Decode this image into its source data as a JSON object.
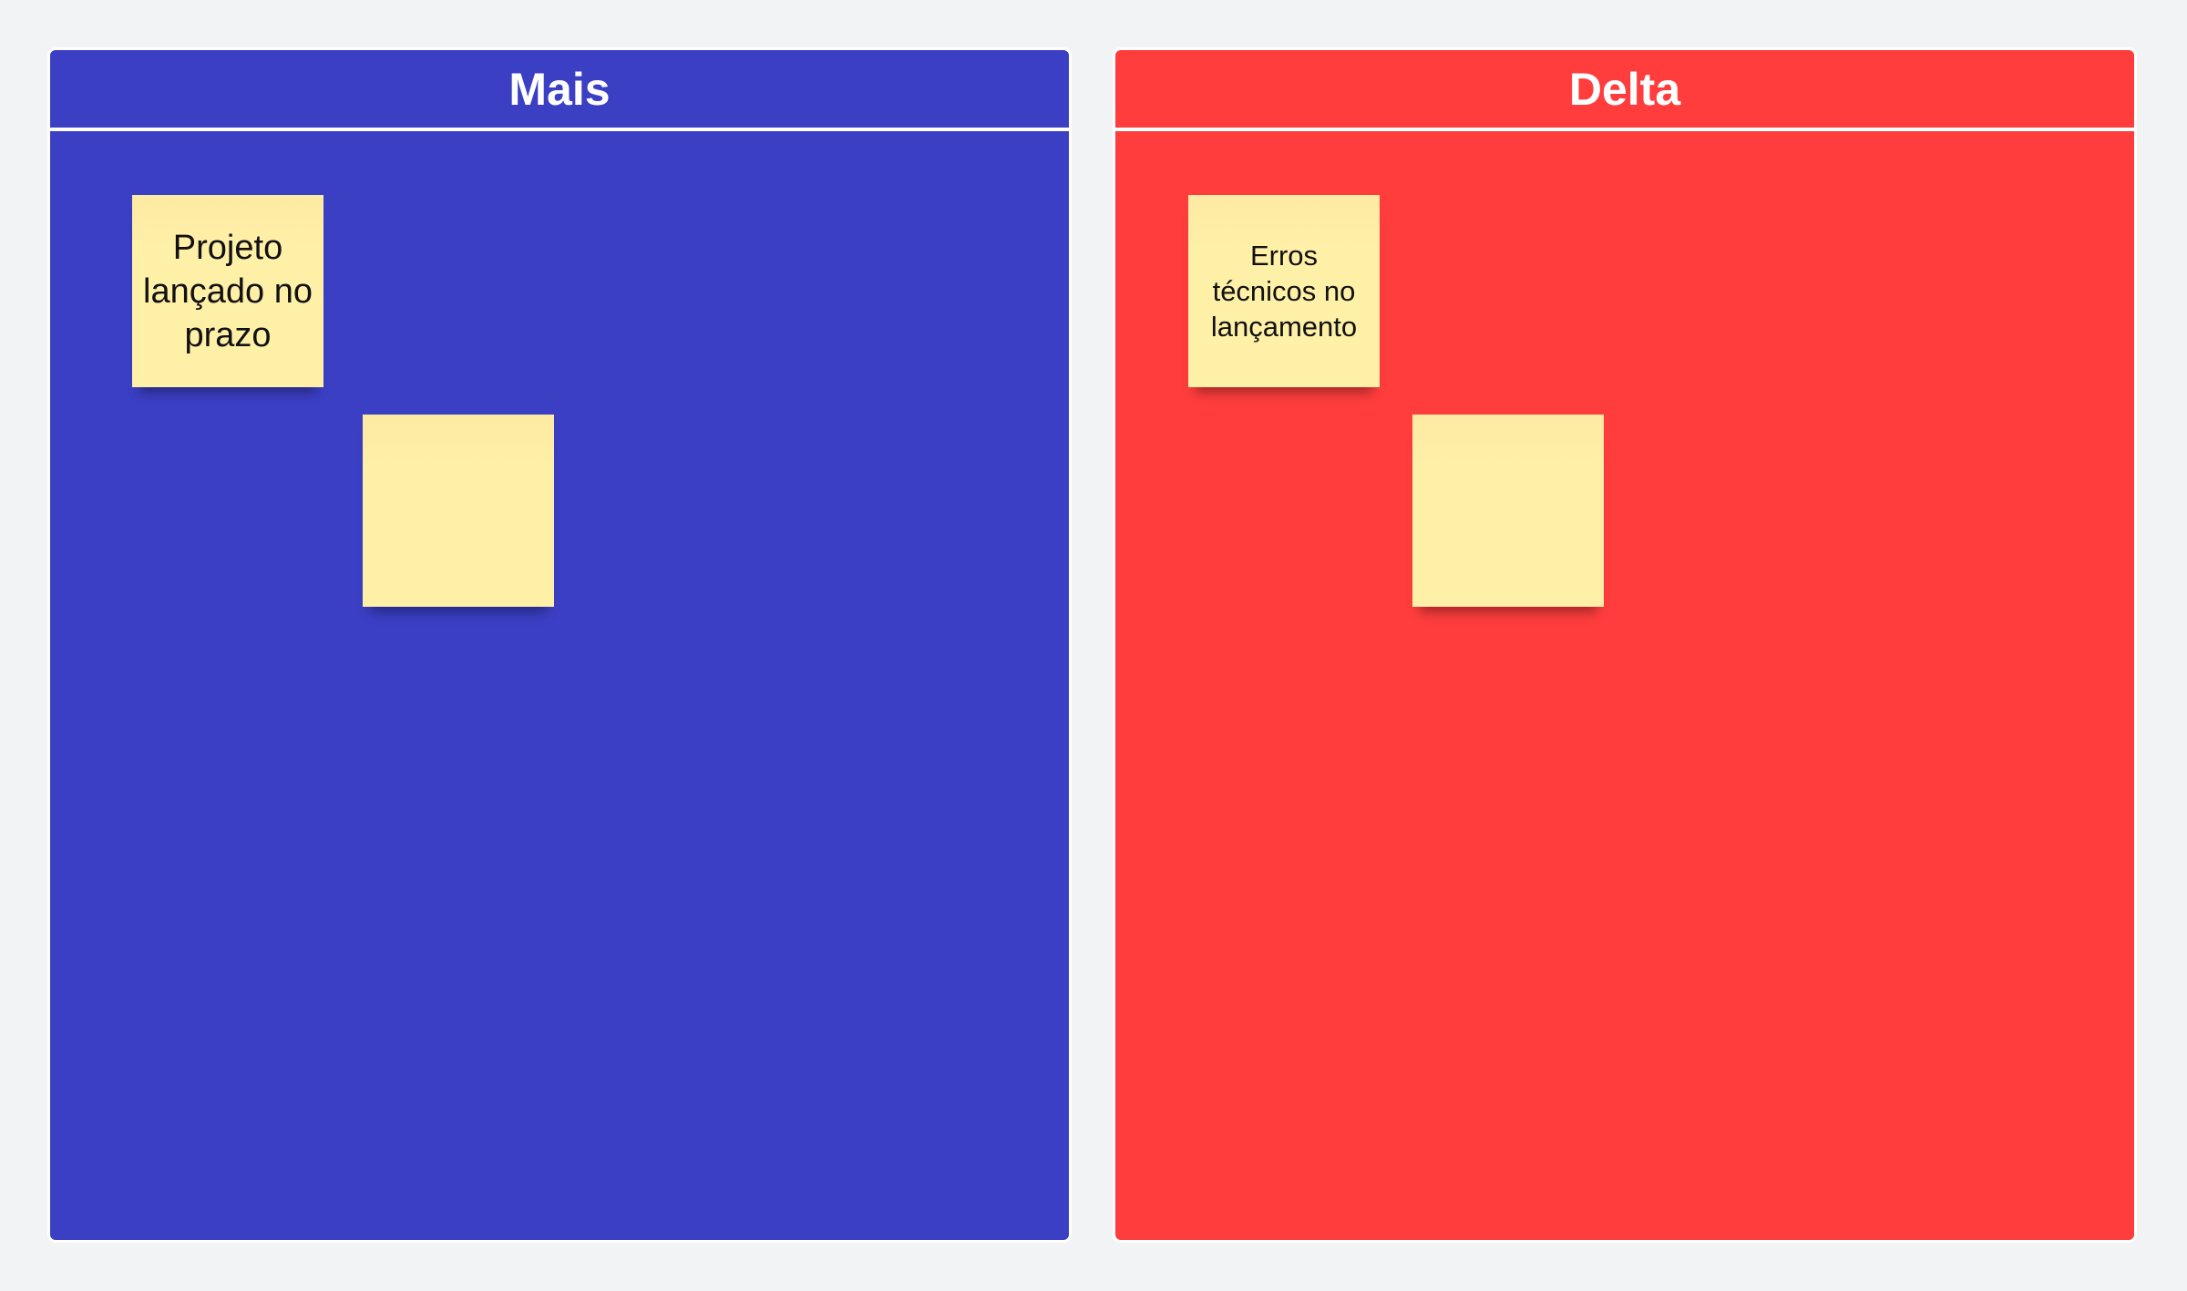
{
  "colors": {
    "mais": "#3b3fc4",
    "delta": "#ff3d3d",
    "note": "#fff0a8",
    "background": "#f2f3f5"
  },
  "panels": [
    {
      "title": "Mais",
      "notes": [
        {
          "text": "Projeto lançado no prazo"
        },
        {
          "text": ""
        }
      ]
    },
    {
      "title": "Delta",
      "notes": [
        {
          "text": "Erros técnicos no lançamento"
        },
        {
          "text": ""
        }
      ]
    }
  ]
}
